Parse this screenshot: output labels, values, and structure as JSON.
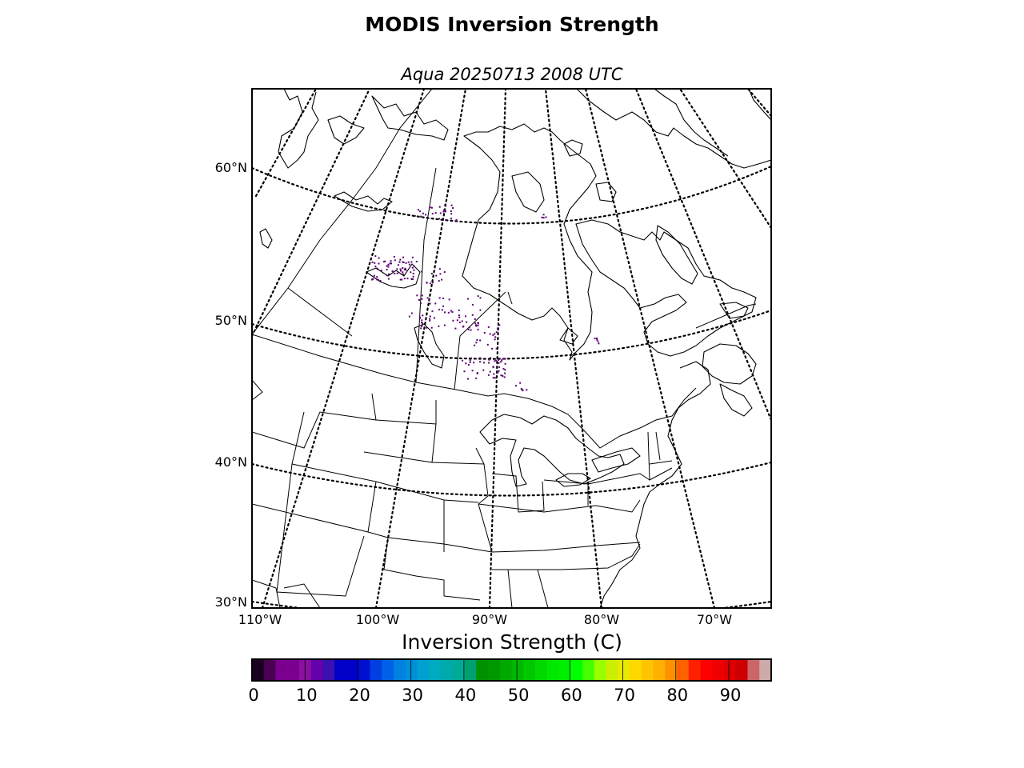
{
  "figure": {
    "title": "MODIS Inversion Strength",
    "subtitle": "Aqua 20250713 2008 UTC"
  },
  "map": {
    "lat_labels": [
      {
        "label": "60°N",
        "lat": 60
      },
      {
        "label": "50°N",
        "lat": 50
      },
      {
        "label": "40°N",
        "lat": 40
      },
      {
        "label": "30°N",
        "lat": 30
      }
    ],
    "lon_labels": [
      {
        "label": "110°W",
        "lon": -110
      },
      {
        "label": "100°W",
        "lon": -100
      },
      {
        "label": "90°W",
        "lon": -90
      },
      {
        "label": "80°W",
        "lon": -80
      },
      {
        "label": "70°W",
        "lon": -70
      }
    ],
    "data_color": "#5a0070"
  },
  "colorbar": {
    "title": "Inversion Strength (C)",
    "min": 0,
    "max": 98,
    "tick_labels": [
      "0",
      "10",
      "20",
      "30",
      "40",
      "50",
      "60",
      "70",
      "80",
      "90"
    ],
    "tick_values": [
      0,
      10,
      20,
      30,
      40,
      50,
      60,
      70,
      80,
      90
    ],
    "colors": [
      "#1a0020",
      "#4a0050",
      "#7a0090",
      "#7a0090",
      "#8a10a0",
      "#6600aa",
      "#3a10b0",
      "#0000c8",
      "#0000c8",
      "#0010d0",
      "#0040e0",
      "#0060e8",
      "#0080e0",
      "#0090d8",
      "#00a0d0",
      "#00aac0",
      "#00aaaa",
      "#00aa99",
      "#00a070",
      "#009000",
      "#009800",
      "#00a800",
      "#00b800",
      "#00c800",
      "#00d800",
      "#00e800",
      "#00ee00",
      "#00ff00",
      "#44ff00",
      "#99ff00",
      "#ccee00",
      "#e8e800",
      "#ffd800",
      "#ffc400",
      "#ffb000",
      "#ff9000",
      "#ff6000",
      "#ff2000",
      "#ff0000",
      "#ee0000",
      "#dd0000",
      "#cc0000",
      "#cc6666",
      "#ccaaaa"
    ]
  }
}
